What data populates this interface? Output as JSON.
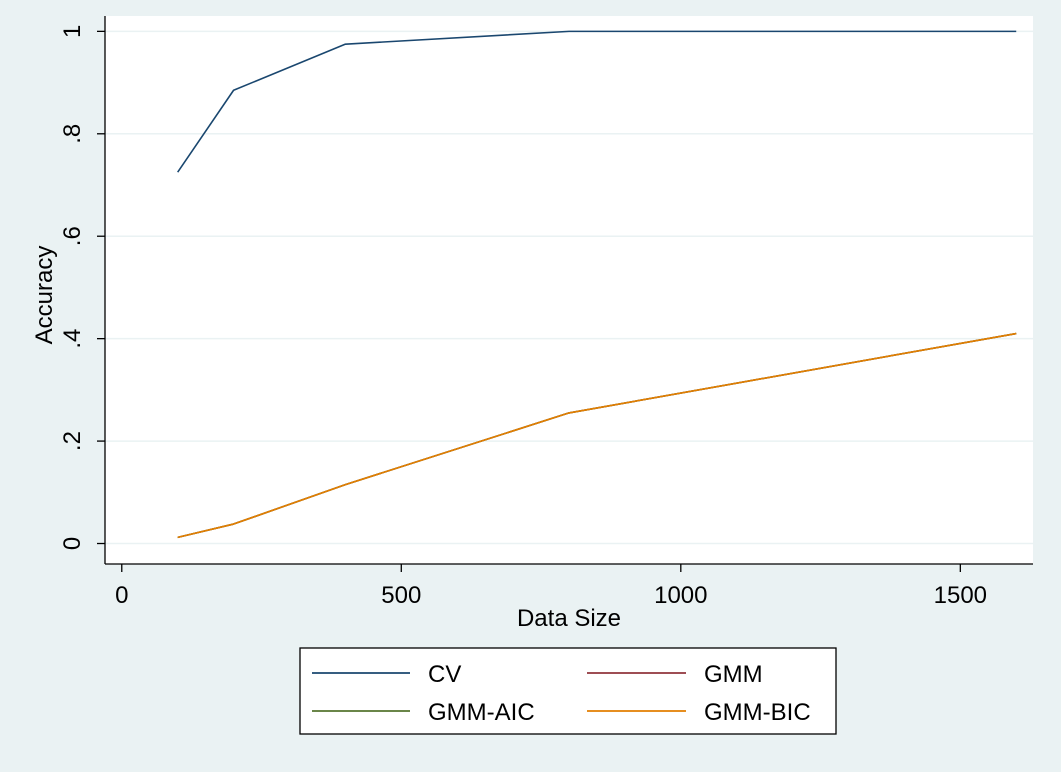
{
  "chart_data": {
    "type": "line",
    "xlabel": "Data Size",
    "ylabel": "Accuracy",
    "xlim": [
      -30,
      1630
    ],
    "ylim": [
      -0.04,
      1.03
    ],
    "x_ticks": [
      0,
      500,
      1000,
      1500
    ],
    "x_tick_labels": [
      "0",
      "500",
      "1000",
      "1500"
    ],
    "y_ticks": [
      0,
      0.2,
      0.4,
      0.6,
      0.8,
      1
    ],
    "y_tick_labels": [
      "0",
      ".2",
      ".4",
      ".6",
      ".8",
      "1"
    ],
    "grid": "horizontal",
    "legend_position": "bottom",
    "x": [
      100,
      200,
      400,
      800,
      1600
    ],
    "series": [
      {
        "name": "CV",
        "color": "#1a476f",
        "values": [
          0.725,
          0.885,
          0.975,
          1.0,
          1.0
        ]
      },
      {
        "name": "GMM",
        "color": "#90353b",
        "values": [
          0.012,
          0.038,
          0.115,
          0.255,
          0.41
        ]
      },
      {
        "name": "GMM-AIC",
        "color": "#55752f",
        "values": [
          0.012,
          0.038,
          0.115,
          0.255,
          0.41
        ]
      },
      {
        "name": "GMM-BIC",
        "color": "#e37e00",
        "values": [
          0.012,
          0.038,
          0.115,
          0.255,
          0.41
        ]
      }
    ]
  }
}
